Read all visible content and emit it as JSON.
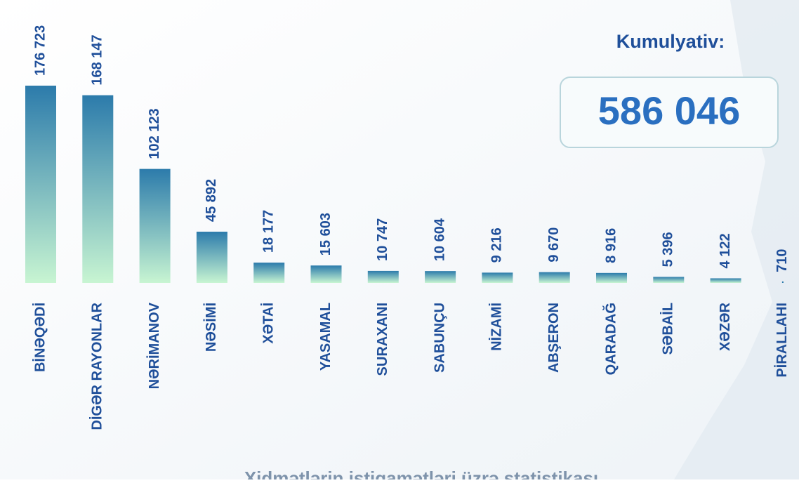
{
  "chart_data": {
    "type": "bar",
    "title": "Xidmətlərin istiqamətləri üzrə statistikası",
    "categories": [
      "BİNƏQƏDİ",
      "DİGƏR RAYONLAR",
      "NƏRİMANOV",
      "NƏSİMİ",
      "XƏTAİ",
      "YASAMAL",
      "SURAXANI",
      "SABUNÇU",
      "NİZAMİ",
      "ABŞERON",
      "QARADAĞ",
      "SƏBAİL",
      "XƏZƏR",
      "PİRALLAHI"
    ],
    "values": [
      176723,
      168147,
      102123,
      45892,
      18177,
      15603,
      10747,
      10604,
      9216,
      9670,
      8916,
      5396,
      4122,
      710
    ],
    "value_labels": [
      "176 723",
      "168 147",
      "102 123",
      "45 892",
      "18 177",
      "15 603",
      "10 747",
      "10 604",
      "9 216",
      "9 670",
      "8 916",
      "5 396",
      "4 122",
      "710"
    ],
    "color_top": "#2c7bab",
    "color_bottom": "#c8f5d2",
    "cumulative_title": "Kumulyativ:",
    "cumulative": {
      "value": 586046,
      "label": "586 046"
    }
  }
}
